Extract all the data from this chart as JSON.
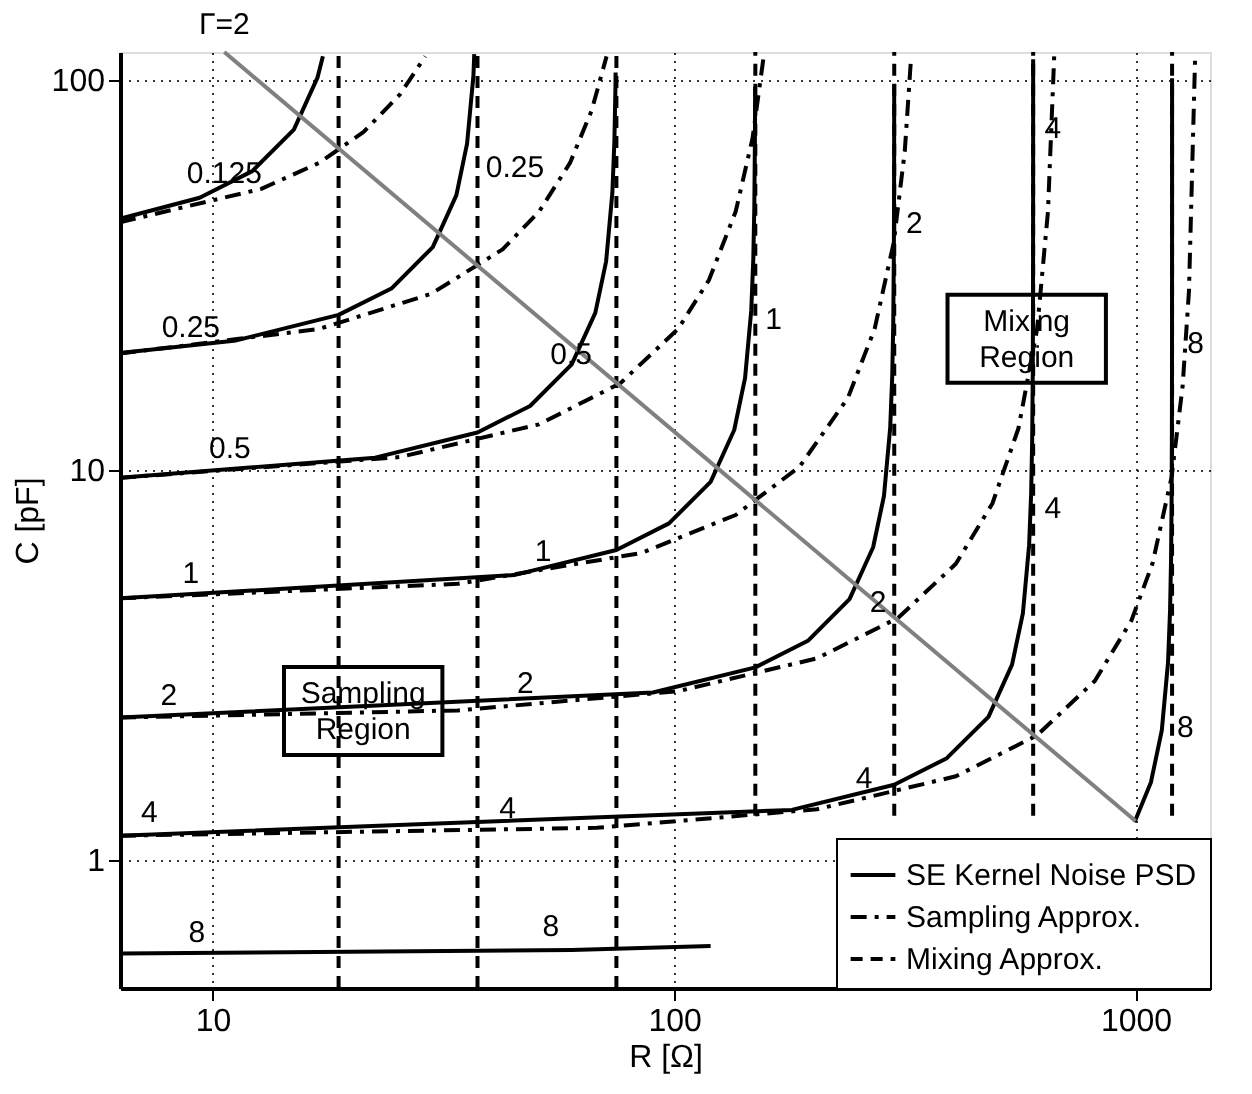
{
  "chart_data": {
    "type": "line",
    "xlabel": "R [Ω]",
    "ylabel": "C [pF]",
    "log": "xy",
    "grid": true,
    "legend": "bottom right",
    "xlim": [
      6.3,
      1450
    ],
    "ylim": [
      0.47,
      118
    ],
    "xticks": [
      10,
      100,
      1000
    ],
    "yticks": [
      1,
      10,
      100
    ],
    "series": [
      {
        "name": "SE Kernel Noise PSD",
        "color": "#000000",
        "line_style": "solid",
        "x": [
          6.3,
          9.375,
          12.19,
          15,
          16.875,
          17.34
        ],
        "values": [
          44.1,
          49.9,
          58.4,
          74.6,
          101.4,
          115
        ]
      },
      {
        "color": "#000000",
        "line_style": "solid",
        "x": [
          6.3,
          11.25,
          18.75,
          24.4,
          30,
          33.75,
          35.6,
          36.75,
          36.9
        ],
        "values": [
          19.96,
          21.5,
          25.0,
          29.2,
          37.3,
          50.7,
          68.7,
          102.8,
          116.5
        ]
      },
      {
        "color": "#000000",
        "line_style": "solid",
        "x": [
          6.3,
          22.5,
          37.5,
          48.75,
          60,
          67.5,
          71.25,
          73.5,
          74.25,
          74.63,
          74.7
        ],
        "values": [
          9.56,
          10.76,
          12.48,
          14.6,
          18.66,
          25.3,
          34.3,
          51.4,
          69.7,
          94.7,
          104.5
        ]
      },
      {
        "color": "#000000",
        "line_style": "solid",
        "x": [
          6.3,
          45,
          75,
          97.5,
          120,
          135,
          142.5,
          147,
          148.5,
          149.25,
          149.7,
          149.85
        ],
        "values": [
          4.69,
          5.38,
          6.24,
          7.3,
          9.33,
          12.67,
          17.2,
          25.7,
          34.8,
          47.3,
          70.8,
          96
        ]
      },
      {
        "color": "#000000",
        "line_style": "solid",
        "x": [
          6.3,
          90,
          150,
          195,
          240,
          270,
          285,
          294,
          297,
          298.5,
          299.4,
          299.7,
          299.85,
          299.94
        ],
        "values": [
          2.32,
          2.69,
          3.12,
          3.65,
          4.67,
          6.34,
          8.58,
          12.85,
          17.4,
          23.7,
          35.4,
          48,
          65,
          97.5
        ]
      },
      {
        "color": "#000000",
        "line_style": "solid",
        "x": [
          6.3,
          180,
          300,
          390,
          480,
          540,
          570,
          588,
          594,
          597,
          598.8,
          599.4,
          599.7,
          599.88,
          599.95,
          599.98
        ],
        "values": [
          1.155,
          1.345,
          1.56,
          1.825,
          2.33,
          3.17,
          4.29,
          6.42,
          8.7,
          11.85,
          17.7,
          24,
          32.6,
          48.7,
          72.8,
          113
        ]
      },
      {
        "color": "#000000",
        "line_style": "solid",
        "x": [
          6.3,
          60,
          120,
          500,
          995,
          1080,
          1140,
          1176,
          1188,
          1194,
          1197.6,
          1198.8,
          1199.4,
          1199.76,
          1199.88,
          1199.96,
          1199.99
        ],
        "values": [
          0.576,
          0.588,
          0.602,
          null,
          1.25,
          1.584,
          2.15,
          3.21,
          4.36,
          5.92,
          8.85,
          12.0,
          16.3,
          24.4,
          33,
          56.4,
          101
        ]
      },
      {
        "name": "Sampling Approx.",
        "color": "#000000",
        "line_style": "dashdot",
        "x": [
          6.3,
          12.75,
          17,
          21.25,
          25.5,
          28.9
        ],
        "values": [
          43.2,
          52.6,
          61.3,
          73.6,
          92,
          115
        ]
      },
      {
        "color": "#000000",
        "line_style": "dashdot",
        "x": [
          6.3,
          17,
          29.75,
          42.5,
          51,
          59.5,
          66.3,
          71.4
        ],
        "values": [
          19.9,
          23,
          28.3,
          36.8,
          46,
          61.3,
          83.6,
          115
        ]
      },
      {
        "color": "#000000",
        "line_style": "dashdot",
        "x": [
          6.3,
          25.5,
          51,
          76.5,
          102,
          119,
          136,
          147.9,
          156.4
        ],
        "values": [
          9.55,
          10.8,
          13.1,
          16.7,
          23,
          30.7,
          46,
          70.8,
          115
        ]
      },
      {
        "color": "#000000",
        "line_style": "dashdot",
        "x": [
          6.3,
          34,
          85,
          136,
          187,
          238,
          272,
          299.2,
          316.2,
          326.4
        ],
        "values": [
          4.69,
          5.11,
          6.13,
          7.67,
          10.2,
          15.3,
          23,
          38.3,
          65.7,
          115
        ]
      },
      {
        "color": "#000000",
        "line_style": "dashdot",
        "x": [
          6.3,
          34,
          102,
          204,
          306,
          408,
          489.6,
          557.6,
          612,
          646,
          666.4
        ],
        "values": [
          2.32,
          2.42,
          2.71,
          3.29,
          4.18,
          5.75,
          8.21,
          12.8,
          23,
          46,
          115
        ]
      },
      {
        "color": "#000000",
        "line_style": "dashdot",
        "x": [
          6.3,
          68,
          204,
          408,
          612,
          816,
          979.2,
          1088,
          1196.8,
          1264.8,
          1305.6,
          1346.4
        ],
        "values": [
          1.155,
          1.21,
          1.35,
          1.64,
          2.09,
          2.88,
          4.11,
          5.75,
          9.58,
          16.4,
          28.8,
          115
        ]
      },
      {
        "name": "Mixing Approx.",
        "color": "#000000",
        "line_style": "dashed",
        "x": [
          18.75,
          18.75
        ],
        "values": [
          0.47,
          118
        ]
      },
      {
        "color": "#000000",
        "line_style": "dashed",
        "x": [
          37.5,
          37.5
        ],
        "values": [
          0.47,
          118
        ]
      },
      {
        "color": "#000000",
        "line_style": "dashed",
        "x": [
          75,
          75
        ],
        "values": [
          0.47,
          118
        ]
      },
      {
        "color": "#000000",
        "line_style": "dashed",
        "x": [
          150,
          150
        ],
        "values": [
          1.3,
          118
        ]
      },
      {
        "color": "#000000",
        "line_style": "dashed",
        "x": [
          300,
          300
        ],
        "values": [
          1.3,
          118
        ]
      },
      {
        "color": "#000000",
        "line_style": "dashed",
        "x": [
          600,
          600
        ],
        "values": [
          1.3,
          118
        ]
      },
      {
        "color": "#000000",
        "line_style": "dashed",
        "x": [
          1200,
          1200
        ],
        "values": [
          1.3,
          118
        ]
      },
      {
        "color": "#808080",
        "line_style": "solid",
        "x": [
          10.6,
          1000
        ],
        "values": [
          118,
          1.26
        ]
      }
    ],
    "annotations": [
      {
        "text": "Γ=2",
        "x": 10.6,
        "y": 118
      },
      {
        "text": "Sampling Region",
        "x": 21.2,
        "y": 2.41
      },
      {
        "text": "Mixing Region",
        "x": 581,
        "y": 21.7
      },
      {
        "text": "0.125",
        "x": 10.6,
        "y": 50
      },
      {
        "text": "0.25",
        "x": 8.97,
        "y": 20.2
      },
      {
        "text": "0.25",
        "x": 36.8,
        "y": 59.7
      },
      {
        "text": "0.5",
        "x": 10.9,
        "y": 9.9
      },
      {
        "text": "0.5",
        "x": 59.8,
        "y": 17.2
      },
      {
        "text": "1",
        "x": 8.97,
        "y": 4.72
      },
      {
        "text": "1",
        "x": 52,
        "y": 5.37
      },
      {
        "text": "1",
        "x": 148.5,
        "y": 24.4
      },
      {
        "text": "2",
        "x": 8.04,
        "y": 2.3
      },
      {
        "text": "2",
        "x": 47.6,
        "y": 2.47
      },
      {
        "text": "2",
        "x": 299.6,
        "y": 42.9
      },
      {
        "text": "2",
        "x": 250,
        "y": 4.6
      },
      {
        "text": "4",
        "x": 7.29,
        "y": 1.15
      },
      {
        "text": "4",
        "x": 43.6,
        "y": 1.18
      },
      {
        "text": "4",
        "x": 258,
        "y": 1.41
      },
      {
        "text": "4",
        "x": 598,
        "y": 75.4
      },
      {
        "text": "4",
        "x": 598,
        "y": 8.0
      },
      {
        "text": "8",
        "x": 9.24,
        "y": 0.569
      },
      {
        "text": "8",
        "x": 54.1,
        "y": 0.589
      },
      {
        "text": "8",
        "x": 1219,
        "y": 21.2
      },
      {
        "text": "8",
        "x": 1159,
        "y": 2.2
      }
    ]
  }
}
